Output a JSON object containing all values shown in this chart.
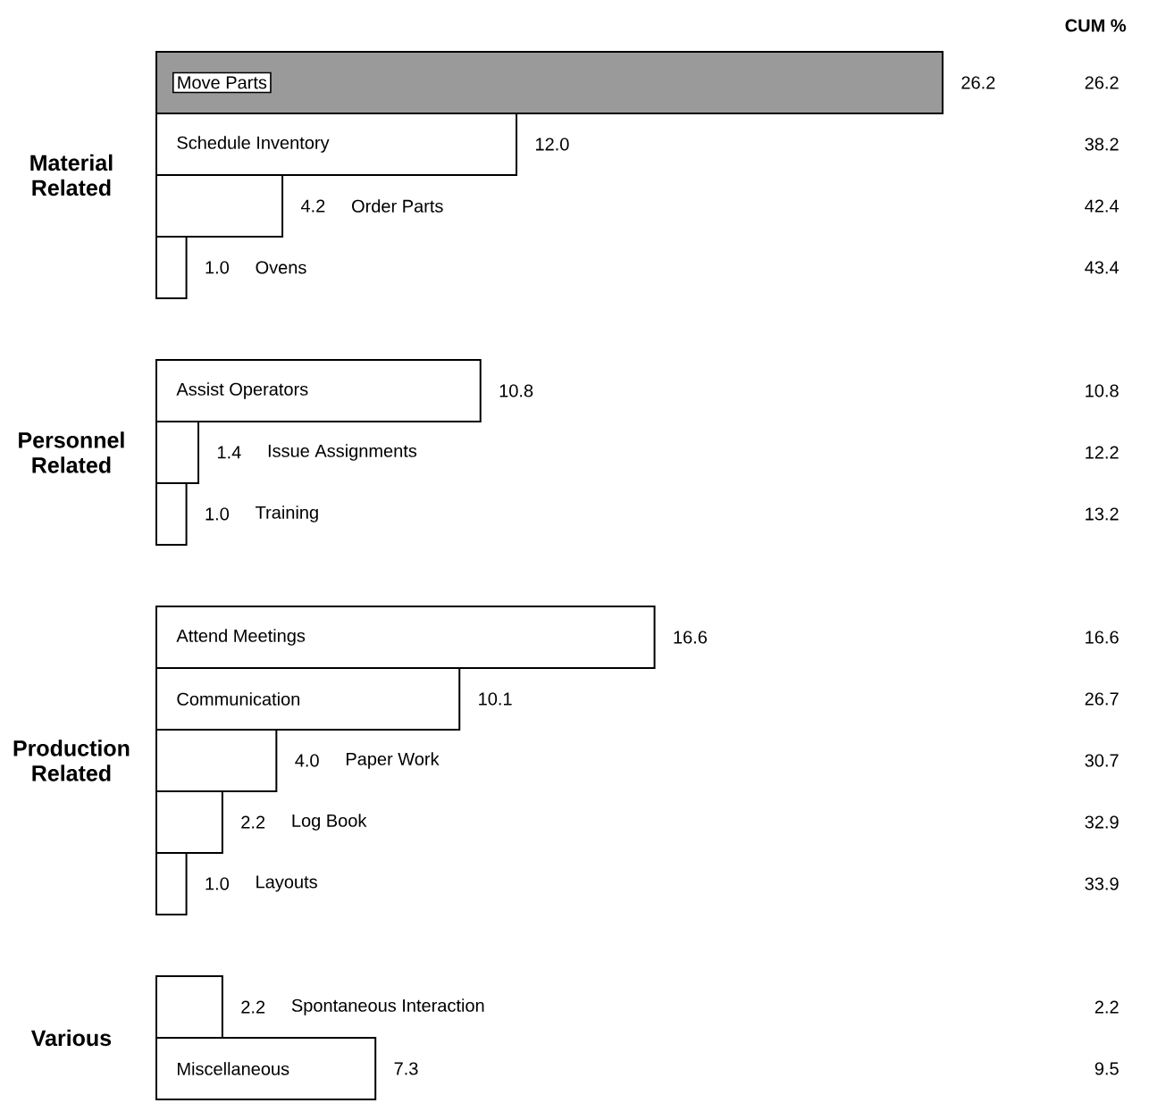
{
  "chart_data": [
    {
      "type": "bar",
      "orientation": "horizontal",
      "ylabel": "Material Related",
      "categories": [
        "Move Parts",
        "Schedule Inventory",
        "Order Parts",
        "Ovens"
      ],
      "values": [
        26.2,
        12.0,
        4.2,
        1.0
      ],
      "colors": [
        "#9a9a9a",
        "#ffffff",
        "#ffffff",
        "#ffffff"
      ],
      "value_labels": [
        "26.2",
        "12.0",
        "4.2",
        "1.0"
      ],
      "annotations": [
        "CUM %",
        "26.2",
        "38.2",
        "42.4",
        "43.4"
      ]
    },
    {
      "type": "bar",
      "orientation": "horizontal",
      "ylabel": "Personnel Related",
      "categories": [
        "Assist Operators",
        "Issue Assignments",
        "Training"
      ],
      "values": [
        10.8,
        1.4,
        1.0
      ],
      "colors": [
        "#ffffff",
        "#ffffff",
        "#ffffff"
      ],
      "value_labels": [
        "10.8",
        "1.4",
        "1.0"
      ],
      "annotations": [
        "10.8",
        "12.2",
        "13.2"
      ]
    },
    {
      "type": "bar",
      "orientation": "horizontal",
      "ylabel": "Production Related",
      "categories": [
        "Attend Meetings",
        "Communication",
        "Paper Work",
        "Log Book",
        "Layouts"
      ],
      "values": [
        16.6,
        10.1,
        4.0,
        2.2,
        1.0
      ],
      "colors": [
        "#ffffff",
        "#ffffff",
        "#ffffff",
        "#ffffff",
        "#ffffff"
      ],
      "value_labels": [
        "16.6",
        "10.1",
        "4.0",
        "2.2",
        "1.0"
      ],
      "annotations": [
        "16.6",
        "26.7",
        "30.7",
        "32.9",
        "33.9"
      ]
    },
    {
      "type": "bar",
      "orientation": "horizontal",
      "ylabel": "Various",
      "categories": [
        "Spontaneous Interaction",
        "Miscellaneous"
      ],
      "values": [
        2.2,
        7.3
      ],
      "colors": [
        "#ffffff",
        "#ffffff"
      ],
      "value_labels": [
        "2.2",
        "7.3"
      ],
      "annotations": [
        "2.2",
        "9.5"
      ]
    }
  ]
}
